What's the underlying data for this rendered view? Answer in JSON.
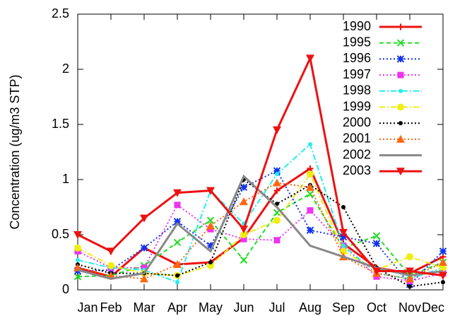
{
  "chart_data": {
    "type": "line",
    "y_label": "Concentration (ug/m3 STP)",
    "categories": [
      "Jan",
      "Feb",
      "Mar",
      "Apr",
      "May",
      "Jun",
      "Jul",
      "Aug",
      "Sep",
      "Oct",
      "Nov",
      "Dec"
    ],
    "ylim": [
      0,
      2.5
    ],
    "yticks": [
      0,
      0.5,
      1,
      1.5,
      2,
      2.5
    ],
    "legend": "top-right",
    "series": [
      {
        "name": "1990",
        "color": "#ee1111",
        "dash": "solid",
        "marker": "plus",
        "width": 3,
        "values": [
          0.2,
          0.12,
          0.38,
          0.23,
          0.25,
          0.47,
          0.9,
          1.1,
          0.42,
          0.2,
          0.15,
          0.3
        ]
      },
      {
        "name": "1995",
        "color": "#22dd22",
        "dash": "dashed",
        "marker": "x",
        "width": 2,
        "values": [
          0.12,
          0.13,
          0.22,
          0.43,
          0.63,
          0.27,
          0.7,
          0.87,
          0.38,
          0.49,
          0.13,
          0.25
        ]
      },
      {
        "name": "1996",
        "color": "#1133ee",
        "dash": "dotted",
        "marker": "star",
        "width": 2,
        "values": [
          0.17,
          0.18,
          0.38,
          0.62,
          0.4,
          0.93,
          1.08,
          0.54,
          0.48,
          0.42,
          0.05,
          0.35
        ]
      },
      {
        "name": "1997",
        "color": "#ee33ee",
        "dash": "dotted",
        "marker": "square",
        "width": 2,
        "values": [
          0.35,
          0.2,
          0.2,
          0.77,
          0.55,
          0.46,
          0.45,
          0.72,
          0.4,
          0.12,
          0.08,
          0.15
        ]
      },
      {
        "name": "1998",
        "color": "#22eeee",
        "dash": "dashdot",
        "marker": "dot",
        "width": 2,
        "values": [
          0.27,
          0.2,
          0.18,
          0.07,
          0.9,
          0.6,
          1.05,
          1.32,
          0.4,
          0.15,
          0.1,
          0.2
        ]
      },
      {
        "name": "1999",
        "color": "#eeee11",
        "dash": "dashdot",
        "marker": "circle",
        "width": 2,
        "values": [
          0.38,
          0.22,
          0.15,
          0.13,
          0.22,
          0.5,
          0.63,
          1.05,
          0.35,
          0.18,
          0.3,
          0.2
        ]
      },
      {
        "name": "2000",
        "color": "#000000",
        "dash": "dotted",
        "marker": "dot",
        "width": 2,
        "values": [
          0.23,
          0.15,
          0.15,
          0.13,
          0.25,
          1.0,
          0.78,
          0.95,
          0.75,
          0.2,
          0.03,
          0.07
        ]
      },
      {
        "name": "2001",
        "color": "#ff6611",
        "dash": "dotted",
        "marker": "triangle",
        "width": 2,
        "values": [
          0.2,
          0.13,
          0.1,
          0.23,
          0.58,
          0.8,
          0.97,
          0.93,
          0.3,
          0.15,
          0.1,
          0.25
        ]
      },
      {
        "name": "2002",
        "color": "#888888",
        "dash": "solid",
        "marker": "none",
        "width": 3,
        "values": [
          0.18,
          0.1,
          0.15,
          0.6,
          0.35,
          1.03,
          0.75,
          0.4,
          0.3,
          0.2,
          0.13,
          0.17
        ]
      },
      {
        "name": "2003",
        "color": "#ee1111",
        "dash": "solid",
        "marker": "triangle-down",
        "width": 3,
        "values": [
          0.5,
          0.35,
          0.65,
          0.88,
          0.9,
          0.55,
          1.45,
          2.1,
          0.52,
          0.17,
          0.17,
          0.13
        ]
      }
    ]
  }
}
